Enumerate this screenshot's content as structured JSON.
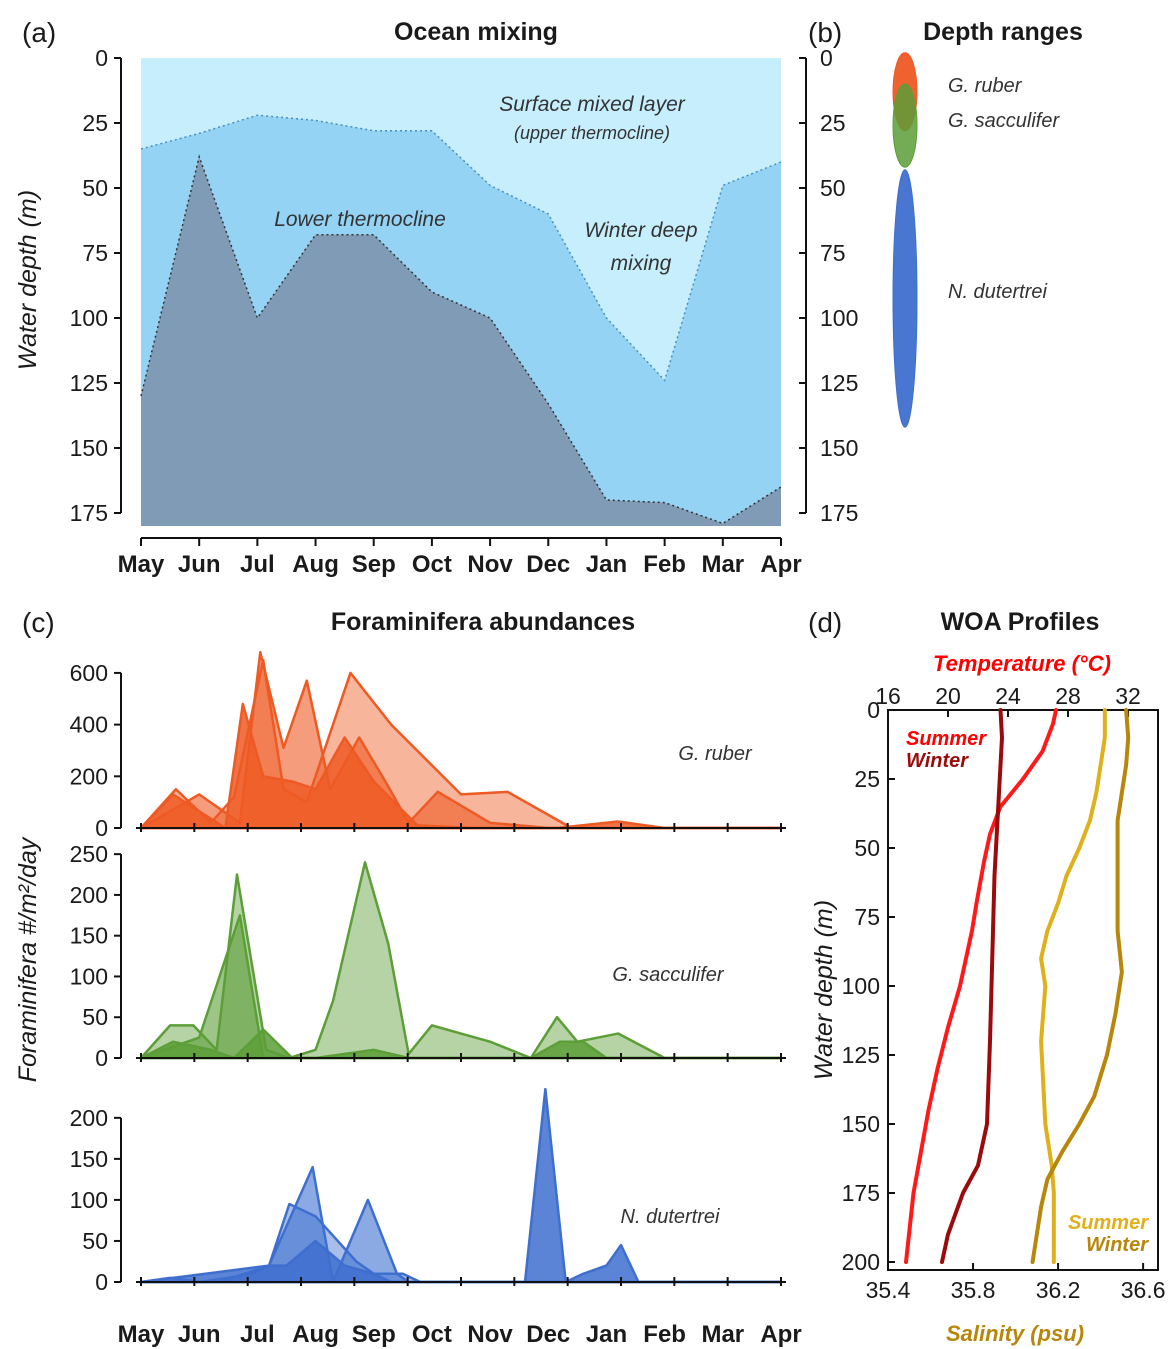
{
  "panels": {
    "a": {
      "letter": "(a)",
      "title": "Ocean mixing"
    },
    "b": {
      "letter": "(b)",
      "title": "Depth ranges"
    },
    "c": {
      "letter": "(c)",
      "title": "Foraminifera abundances"
    },
    "d": {
      "letter": "(d)",
      "title": "WOA Profiles"
    }
  },
  "colors": {
    "surface": "#c6eefc",
    "lower": "#95d3f5",
    "deep": "#7f9bb5",
    "ruber": "#ee5a24",
    "sacculifer": "#5c9e37",
    "dutertrei": "#3e6fcf",
    "temp_summer": "#ff1a1a",
    "temp_winter": "#9b0b0b",
    "sal_summer": "#e0b01c",
    "sal_winter": "#b8860b"
  },
  "chart_data": [
    {
      "type": "area",
      "panel": "a",
      "title": "Ocean mixing",
      "ylabel": "Water depth (m)",
      "ylim": [
        0,
        180
      ],
      "y_inverted": true,
      "yticks": [
        "0",
        "25",
        "50",
        "75",
        "100",
        "125",
        "150",
        "175"
      ],
      "ytick_values": [
        0,
        25,
        50,
        75,
        100,
        125,
        150,
        175
      ],
      "categories": [
        "May",
        "Jun",
        "Jul",
        "Aug",
        "Sep",
        "Oct",
        "Nov",
        "Dec",
        "Jan",
        "Feb",
        "Mar",
        "Apr"
      ],
      "month_ticks": [
        0,
        1,
        2,
        3,
        4,
        5,
        6,
        7,
        8,
        9,
        10,
        11
      ],
      "mixed_layer_depth": {
        "x": [
          0,
          1,
          2,
          3,
          4,
          5,
          6,
          7,
          8,
          9,
          10,
          11
        ],
        "y": [
          35,
          29,
          22,
          24,
          28,
          28,
          49,
          60,
          100,
          124,
          49,
          40
        ]
      },
      "lower_thermocline_base": {
        "x": [
          0,
          1,
          2,
          3,
          4,
          5,
          6,
          7,
          8,
          9,
          10,
          11
        ],
        "y": [
          130,
          38,
          100,
          68,
          68,
          90,
          100,
          133,
          170,
          171,
          179,
          165
        ]
      },
      "annotations": [
        "Surface mixed layer",
        "(upper thermocline)",
        "Lower thermocline",
        "Winter deep",
        "mixing"
      ]
    },
    {
      "type": "area",
      "panel": "c",
      "title": "Foraminifera abundances",
      "ylabel": "Foraminifera #/m²/day",
      "categories": [
        "May",
        "Jun",
        "Jul",
        "Aug",
        "Sep",
        "Oct",
        "Nov",
        "Dec",
        "Jan",
        "Feb",
        "Mar",
        "Apr"
      ],
      "month_ticks": [
        0,
        1,
        2,
        3,
        4,
        5,
        6,
        7,
        8,
        9,
        10,
        11
      ],
      "subplots": [
        {
          "species": "G. ruber",
          "ylim": [
            0,
            650
          ],
          "yticks": [
            "0",
            "200",
            "400",
            "600"
          ],
          "ytick_values": [
            0,
            200,
            400,
            600
          ],
          "series": [
            {
              "x": [
                0,
                0.6,
                1.2,
                1.6,
                2.1,
                2.45,
                2.85,
                3.6,
                4.3,
                5.5,
                6.3,
                7.4,
                11
              ],
              "y": [
                0,
                150,
                20,
                120,
                650,
                150,
                100,
                600,
                400,
                130,
                140,
                0,
                0
              ]
            },
            {
              "x": [
                0,
                1.0,
                1.7,
                2.05,
                2.45,
                2.85,
                3.25,
                3.75,
                4.2,
                4.6,
                5.1,
                6.0,
                7.0,
                11
              ],
              "y": [
                0,
                130,
                20,
                680,
                310,
                570,
                150,
                350,
                180,
                20,
                140,
                20,
                0,
                0
              ]
            },
            {
              "x": [
                0,
                0.55,
                1.45,
                1.75,
                2.1,
                2.6,
                3.0,
                3.5,
                4.0,
                4.75,
                5.75,
                7.15,
                8.2,
                9.0,
                11
              ],
              "y": [
                0,
                130,
                0,
                480,
                200,
                180,
                150,
                350,
                180,
                10,
                0,
                0,
                25,
                0,
                0
              ]
            }
          ]
        },
        {
          "species": "G. sacculifer",
          "ylim": [
            0,
            260
          ],
          "yticks": [
            "0",
            "50",
            "100",
            "150",
            "200",
            "250"
          ],
          "ytick_values": [
            0,
            50,
            100,
            150,
            200,
            250
          ],
          "series": [
            {
              "x": [
                0,
                0.5,
                0.9,
                1.3,
                1.65,
                2.15,
                2.55,
                3.0,
                3.3,
                3.85,
                4.25,
                4.6,
                5.0,
                5.5,
                6.0,
                6.7,
                7.15,
                7.5,
                8.2,
                9.0,
                11
              ],
              "y": [
                0,
                40,
                40,
                10,
                225,
                10,
                0,
                10,
                70,
                240,
                140,
                5,
                40,
                30,
                20,
                0,
                50,
                20,
                30,
                0,
                0
              ]
            },
            {
              "x": [
                0,
                1.0,
                1.7,
                2.1,
                2.5,
                11
              ],
              "y": [
                0,
                25,
                175,
                0,
                0,
                0
              ]
            },
            {
              "x": [
                0,
                0.55,
                1.2,
                1.6,
                2.1,
                2.6,
                3.0,
                4.0,
                4.6,
                6.7,
                7.2,
                7.6,
                8.0,
                11
              ],
              "y": [
                0,
                20,
                10,
                0,
                35,
                0,
                0,
                10,
                0,
                0,
                20,
                20,
                0,
                0
              ]
            }
          ]
        },
        {
          "species": "N. dutertrei",
          "ylim": [
            0,
            240
          ],
          "yticks": [
            "0",
            "50",
            "100",
            "150",
            "200"
          ],
          "ytick_values": [
            0,
            50,
            100,
            150,
            200
          ],
          "series": [
            {
              "x": [
                0,
                0.5,
                1.0,
                1.5,
                1.9,
                2.2,
                2.55,
                3.0,
                3.7,
                4.0,
                4.5,
                4.8,
                11
              ],
              "y": [
                0,
                5,
                0,
                5,
                10,
                20,
                95,
                80,
                25,
                10,
                10,
                0,
                0
              ]
            },
            {
              "x": [
                0,
                1.35,
                2.2,
                2.95,
                3.3,
                3.9,
                4.4,
                4.6,
                11
              ],
              "y": [
                0,
                0,
                20,
                140,
                0,
                100,
                10,
                0,
                0
              ]
            },
            {
              "x": [
                0,
                2.2,
                2.5,
                3.0,
                3.5,
                4.0,
                4.3,
                6.6,
                6.95,
                7.3,
                7.6,
                8.0,
                8.25,
                8.55,
                11
              ],
              "y": [
                0,
                20,
                20,
                50,
                20,
                10,
                0,
                0,
                235,
                0,
                10,
                20,
                45,
                0,
                0
              ]
            }
          ]
        }
      ]
    },
    {
      "type": "line",
      "panel": "d",
      "title": "WOA Profiles",
      "ylabel": "Water depth (m)",
      "ylim": [
        0,
        200
      ],
      "y_inverted": true,
      "yticks": [
        "0",
        "25",
        "50",
        "75",
        "100",
        "125",
        "150",
        "175",
        "200"
      ],
      "ytick_values": [
        0,
        25,
        50,
        75,
        100,
        125,
        150,
        175,
        200
      ],
      "top_axis": {
        "label": "Temperature (°C)",
        "lim": [
          16,
          34
        ],
        "ticks": [
          "16",
          "20",
          "24",
          "28",
          "32"
        ],
        "tick_values": [
          16,
          20,
          24,
          28,
          32
        ]
      },
      "bottom_axis": {
        "label": "Salinity (psu)",
        "lim": [
          35.4,
          36.67
        ],
        "ticks": [
          "35.4",
          "35.8",
          "36.2",
          "36.6"
        ],
        "tick_values": [
          35.4,
          35.8,
          36.2,
          36.6
        ]
      },
      "series": [
        {
          "name": "Summer",
          "variable": "temperature",
          "x": [
            27.2,
            27.0,
            26.3,
            25.0,
            23.5,
            22.8,
            22.4,
            21.9,
            21.6,
            21.2,
            20.8,
            20.0,
            19.3,
            18.7,
            18.2,
            17.7,
            17.4,
            17.2
          ],
          "y": [
            0,
            5,
            15,
            25,
            35,
            45,
            55,
            70,
            80,
            90,
            100,
            115,
            130,
            145,
            160,
            175,
            190,
            200
          ]
        },
        {
          "name": "Winter",
          "variable": "temperature",
          "x": [
            23.5,
            23.6,
            23.5,
            23.4,
            23.3,
            23.2,
            23.1,
            23.0,
            22.9,
            22.8,
            22.6,
            22.0,
            21.0,
            20.0,
            19.6
          ],
          "y": [
            0,
            10,
            20,
            30,
            40,
            50,
            60,
            80,
            100,
            120,
            150,
            165,
            175,
            190,
            200
          ]
        },
        {
          "name": "Summer",
          "variable": "salinity",
          "x": [
            36.42,
            36.42,
            36.4,
            36.38,
            36.35,
            36.3,
            36.24,
            36.2,
            36.15,
            36.12,
            36.14,
            36.12,
            36.14,
            36.17,
            36.18,
            36.18,
            36.18
          ],
          "y": [
            0,
            10,
            20,
            30,
            40,
            50,
            60,
            70,
            80,
            90,
            100,
            120,
            150,
            165,
            175,
            190,
            200
          ]
        },
        {
          "name": "Winter",
          "variable": "salinity",
          "x": [
            36.52,
            36.53,
            36.52,
            36.5,
            36.48,
            36.48,
            36.48,
            36.5,
            36.47,
            36.43,
            36.37,
            36.3,
            36.22,
            36.15,
            36.12,
            36.1,
            36.08
          ],
          "y": [
            0,
            10,
            20,
            30,
            40,
            60,
            80,
            95,
            110,
            125,
            140,
            150,
            160,
            170,
            180,
            190,
            200
          ]
        }
      ],
      "labels": {
        "temp_summer": "Summer",
        "temp_winter": "Winter",
        "sal_summer": "Summer",
        "sal_winter": "Winter"
      }
    },
    {
      "type": "other",
      "panel": "b",
      "title": "Depth ranges",
      "ylim": [
        0,
        180
      ],
      "y_inverted": true,
      "yticks": [
        "0",
        "25",
        "50",
        "75",
        "100",
        "125",
        "150",
        "175"
      ],
      "ytick_values": [
        0,
        25,
        50,
        75,
        100,
        125,
        150,
        175
      ],
      "ranges": [
        {
          "name": "G. ruber",
          "top": -2,
          "bottom": 28,
          "color": "#ee5a24"
        },
        {
          "name": "G. sacculifer",
          "top": 10,
          "bottom": 42,
          "color": "#5c9e37"
        },
        {
          "name": "N. dutertrei",
          "top": 43,
          "bottom": 142,
          "color": "#3e6fcf"
        }
      ]
    }
  ]
}
